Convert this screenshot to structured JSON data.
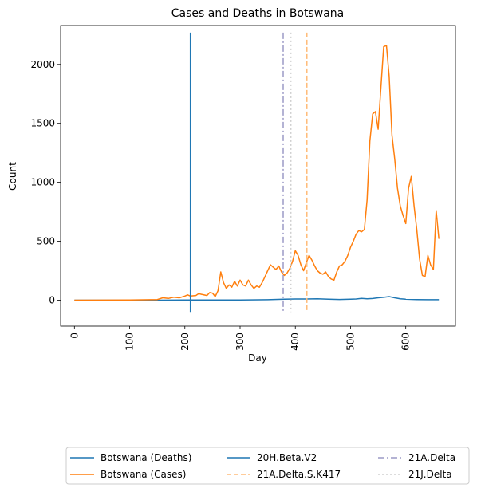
{
  "chart_data": {
    "type": "line",
    "title": "Cases and Deaths in Botswana",
    "xlabel": "Day",
    "ylabel": "Count",
    "xlim": [
      -25,
      690
    ],
    "ylim": [
      -220,
      2330
    ],
    "xticks": [
      0,
      100,
      200,
      300,
      400,
      500,
      600
    ],
    "yticks": [
      0,
      500,
      1000,
      1500,
      2000
    ],
    "grid": false,
    "legend_placement": "bottom (below axes, 3 columns)",
    "series": [
      {
        "name": "Botswana (Deaths)",
        "color": "#1f77b4",
        "x": [
          0,
          150,
          200,
          250,
          300,
          350,
          380,
          400,
          420,
          440,
          460,
          480,
          500,
          510,
          520,
          530,
          540,
          550,
          560,
          570,
          580,
          590,
          600,
          620,
          640,
          660
        ],
        "y": [
          0,
          0,
          1,
          2,
          2,
          4,
          8,
          10,
          10,
          12,
          8,
          6,
          8,
          10,
          15,
          12,
          14,
          20,
          24,
          30,
          20,
          12,
          8,
          5,
          4,
          4
        ]
      },
      {
        "name": "Botswana (Cases)",
        "color": "#ff7f0e",
        "x": [
          0,
          100,
          150,
          160,
          170,
          180,
          190,
          200,
          205,
          210,
          220,
          225,
          230,
          240,
          245,
          250,
          255,
          260,
          265,
          270,
          275,
          280,
          285,
          290,
          295,
          300,
          305,
          310,
          315,
          320,
          325,
          330,
          335,
          340,
          345,
          350,
          355,
          360,
          365,
          370,
          375,
          380,
          385,
          390,
          395,
          400,
          405,
          410,
          415,
          420,
          425,
          430,
          435,
          440,
          445,
          450,
          455,
          460,
          465,
          470,
          475,
          480,
          485,
          490,
          495,
          500,
          505,
          510,
          515,
          520,
          525,
          530,
          535,
          540,
          545,
          550,
          555,
          560,
          565,
          570,
          575,
          580,
          585,
          590,
          595,
          600,
          605,
          610,
          615,
          620,
          625,
          630,
          635,
          640,
          645,
          650,
          655,
          660
        ],
        "y": [
          0,
          2,
          5,
          20,
          15,
          25,
          20,
          35,
          45,
          35,
          40,
          55,
          50,
          40,
          65,
          60,
          30,
          80,
          240,
          150,
          100,
          130,
          110,
          160,
          120,
          170,
          130,
          120,
          170,
          130,
          100,
          120,
          110,
          150,
          200,
          250,
          300,
          280,
          260,
          290,
          240,
          210,
          230,
          270,
          330,
          420,
          380,
          300,
          250,
          320,
          380,
          340,
          290,
          250,
          230,
          220,
          240,
          200,
          180,
          170,
          240,
          290,
          300,
          330,
          380,
          450,
          500,
          560,
          590,
          580,
          600,
          850,
          1350,
          1580,
          1600,
          1450,
          1800,
          2150,
          2160,
          1900,
          1400,
          1200,
          950,
          800,
          720,
          650,
          950,
          1050,
          800,
          600,
          350,
          210,
          200,
          380,
          300,
          260,
          760,
          520
        ]
      }
    ],
    "vlines": [
      {
        "name": "20H.Beta.V2",
        "x": 210,
        "color": "#1f77b4",
        "style": "solid"
      },
      {
        "name": "21A.Delta.S.K417",
        "x": 421,
        "color": "#ffbb78",
        "style": "dashed"
      },
      {
        "name": "21A.Delta",
        "x": 378,
        "color": "#9c9ac6",
        "style": "dashdot"
      },
      {
        "name": "21J.Delta",
        "x": 392,
        "color": "#d0d0d0",
        "style": "dotted"
      }
    ]
  }
}
